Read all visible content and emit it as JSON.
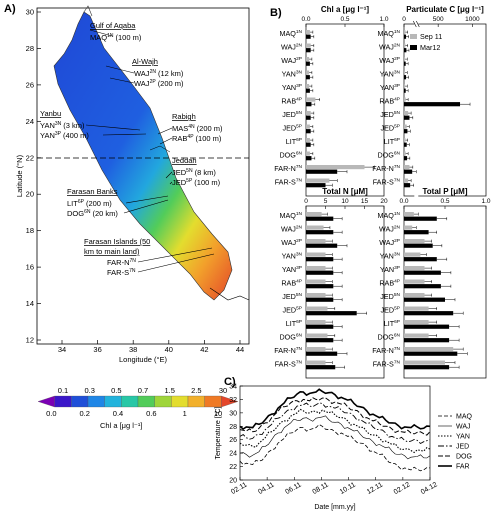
{
  "panels": {
    "a": "A)",
    "b": "B)",
    "c": "C)"
  },
  "map": {
    "y_label": "Latitude (°N)",
    "x_label": "Longitude (°E)",
    "y_ticks": [
      "30",
      "28",
      "26",
      "24",
      "22",
      "20",
      "18",
      "16",
      "14",
      "12"
    ],
    "x_ticks": [
      "34",
      "36",
      "38",
      "40",
      "42",
      "44"
    ],
    "region_labels": {
      "aqaba": "Gulf of Aqaba",
      "wajh": "Al-Wajh",
      "yanbu": "Yanbu",
      "rabigh": "Rabigh",
      "jeddah": "Jeddah",
      "farasan_banks": "Farasan Banks",
      "farasan_islands_1": "Farasan Islands (50",
      "farasan_islands_2": "km to main land)"
    },
    "stations": [
      {
        "code": "MAQ",
        "sup": "1N",
        "dist": "(100 m)"
      },
      {
        "code": "WAJ",
        "sup": "2N",
        "dist": "(12 km)"
      },
      {
        "code": "WAJ",
        "sup": "2P",
        "dist": "(200 m)"
      },
      {
        "code": "YAN",
        "sup": "3N",
        "dist": "(3 km)"
      },
      {
        "code": "YAN",
        "sup": "3P",
        "dist": "(400 m)"
      },
      {
        "code": "MAS",
        "sup": "4N",
        "dist": "(200 m)"
      },
      {
        "code": "RAB",
        "sup": "4P",
        "dist": "(100 m)"
      },
      {
        "code": "JED",
        "sup": "5N",
        "dist": "(8 km)"
      },
      {
        "code": "JED",
        "sup": "5P",
        "dist": "(100 m)"
      },
      {
        "code": "LIT",
        "sup": "6P",
        "dist": "(200 m)"
      },
      {
        "code": "DOG",
        "sup": "6N",
        "dist": "(20 km)"
      },
      {
        "code": "FAR-N",
        "sup": "7N",
        "dist": ""
      },
      {
        "code": "FAR-S",
        "sup": "7N",
        "dist": ""
      }
    ],
    "colorbar": {
      "label": "Chl a [μg l⁻¹]",
      "top_ticks": [
        "0.1",
        "0.3",
        "0.5",
        "0.7",
        "1.5",
        "2.5",
        "30"
      ],
      "bottom_ticks": [
        "0.0",
        "0.2",
        "0.4",
        "0.6",
        "1",
        "10"
      ],
      "colors": [
        "#7b00b4",
        "#3a17c9",
        "#1f4fd8",
        "#1f86e6",
        "#22b3dc",
        "#28c7a6",
        "#52cc5a",
        "#9fd53a",
        "#e3dd2e",
        "#f2b02b",
        "#ef7a25",
        "#e4462a"
      ]
    }
  },
  "chart_data": [
    {
      "type": "bar",
      "title": "Chl a [μg l⁻¹]",
      "xlim": [
        0,
        1.0
      ],
      "x_ticks": [
        "0.0",
        "0.5",
        "1.0"
      ],
      "categories": [
        "MAQ1N",
        "WAJ2N",
        "WAJ2P",
        "YAN3N",
        "YAN3P",
        "RAB4P",
        "JED5N",
        "JED5P",
        "LIT6P",
        "DOG6N",
        "FAR-N7N",
        "FAR-S7N"
      ],
      "series": [
        {
          "name": "Sep 11",
          "values": [
            0.05,
            0.06,
            0.04,
            0.04,
            0.04,
            0.12,
            0.06,
            0.05,
            0.05,
            0.05,
            0.75,
            0.3
          ],
          "color": "#b8b8b8"
        },
        {
          "name": "Mar12",
          "values": [
            0.06,
            0.06,
            0.05,
            0.05,
            0.05,
            0.07,
            0.06,
            0.06,
            0.06,
            0.07,
            0.4,
            0.25
          ],
          "color": "#000000"
        }
      ]
    },
    {
      "type": "bar",
      "title": "Particulate C [μg l⁻¹]",
      "xlim": [
        0,
        1200
      ],
      "x_ticks": [
        "0",
        "500",
        "1000"
      ],
      "axis_break": true,
      "categories": [
        "MAQ1N",
        "WAJ2N",
        "WAJ2P",
        "YAN3N",
        "YAN3P",
        "RAB4P",
        "JED5N",
        "JED5P",
        "LIT6P",
        "DOG6N",
        "FAR-N7N",
        "FAR-S7N"
      ],
      "series": [
        {
          "name": "Sep 11",
          "values": [
            20,
            20,
            15,
            15,
            15,
            25,
            60,
            40,
            20,
            25,
            80,
            60
          ],
          "color": "#b8b8b8"
        },
        {
          "name": "Mar12",
          "values": [
            30,
            35,
            25,
            30,
            25,
            820,
            80,
            50,
            40,
            45,
            120,
            90
          ],
          "color": "#000000"
        }
      ]
    },
    {
      "type": "bar",
      "title": "Total N [μM]",
      "xlim": [
        0,
        20
      ],
      "x_ticks": [
        "0",
        "5",
        "10",
        "15",
        "20"
      ],
      "categories": [
        "MAQ1N",
        "WAJ2N",
        "WAJ2P",
        "YAN3N",
        "YAN3P",
        "RAB4P",
        "JED5N",
        "JED5P",
        "LIT6P",
        "DOG6N",
        "FAR-N7N",
        "FAR-S7N"
      ],
      "series": [
        {
          "name": "Sep 11",
          "values": [
            4,
            4.5,
            5,
            5,
            5,
            5,
            5,
            5.5,
            5,
            5.5,
            5,
            5
          ],
          "color": "#b8b8b8"
        },
        {
          "name": "Mar12",
          "values": [
            7,
            7,
            8,
            7,
            7,
            7,
            7,
            13,
            7,
            7,
            8,
            7.5
          ],
          "color": "#000000"
        }
      ]
    },
    {
      "type": "bar",
      "title": "Total P [μM]",
      "xlim": [
        0,
        1.0
      ],
      "x_ticks": [
        "0.0",
        "0.5",
        "1.0"
      ],
      "categories": [
        "MAQ1N",
        "WAJ2N",
        "WAJ2P",
        "YAN3N",
        "YAN3P",
        "RAB4P",
        "JED5N",
        "JED5P",
        "LIT6P",
        "DOG6N",
        "FAR-N7N",
        "FAR-S7N"
      ],
      "series": [
        {
          "name": "Sep 11",
          "values": [
            0.12,
            0.1,
            0.25,
            0.2,
            0.25,
            0.25,
            0.25,
            0.3,
            0.3,
            0.3,
            0.6,
            0.5
          ],
          "color": "#b8b8b8"
        },
        {
          "name": "Mar12",
          "values": [
            0.4,
            0.3,
            0.35,
            0.4,
            0.45,
            0.45,
            0.5,
            0.6,
            0.55,
            0.55,
            0.65,
            0.55
          ],
          "color": "#000000"
        }
      ]
    },
    {
      "type": "line",
      "ylabel": "Temperature [°C]",
      "xlabel": "Date [mm.yy]",
      "ylim": [
        20,
        34
      ],
      "y_ticks": [
        "20",
        "22",
        "24",
        "26",
        "28",
        "30",
        "32",
        "34"
      ],
      "x_ticks": [
        "02.11",
        "04.11",
        "06.11",
        "08.11",
        "10.11",
        "12.11",
        "02.12",
        "04.12"
      ],
      "x": [
        0,
        1,
        2,
        3,
        4,
        5,
        6,
        7,
        8,
        9,
        10,
        11,
        12,
        13,
        14,
        15,
        16,
        17,
        18,
        19,
        20,
        21,
        22,
        23,
        24,
        25,
        26,
        27,
        28,
        29,
        30
      ],
      "series": [
        {
          "name": "MAQ",
          "dash": "4,2",
          "width": 0.8,
          "values": [
            22.8,
            22.5,
            22.3,
            22.8,
            23.5,
            24.5,
            25.5,
            26.2,
            27.0,
            27.5,
            27.8,
            27.5,
            27.8,
            28.0,
            27.5,
            27.2,
            27.0,
            26.5,
            26.0,
            25.5,
            25.0,
            24.3,
            23.8,
            23.2,
            22.5,
            22.0,
            21.8,
            21.5,
            21.6,
            21.5,
            21.8
          ]
        },
        {
          "name": "WAJ",
          "dash": "",
          "width": 0.6,
          "values": [
            24.0,
            23.8,
            23.7,
            24.2,
            25.0,
            26.0,
            27.0,
            27.8,
            28.5,
            28.9,
            29.2,
            29.0,
            29.2,
            29.4,
            29.0,
            28.6,
            28.3,
            27.8,
            27.3,
            26.8,
            26.2,
            25.7,
            25.3,
            24.8,
            24.3,
            23.8,
            23.6,
            23.4,
            23.5,
            23.3,
            23.6
          ]
        },
        {
          "name": "YAN",
          "dash": "1.5,1.5",
          "width": 1.1,
          "values": [
            25.5,
            25.2,
            25.0,
            25.5,
            26.3,
            27.2,
            28.1,
            28.8,
            29.5,
            30.0,
            30.3,
            30.0,
            30.2,
            30.4,
            30.0,
            29.7,
            29.3,
            28.8,
            28.3,
            27.8,
            27.2,
            26.7,
            26.3,
            25.8,
            25.3,
            24.8,
            24.6,
            24.4,
            24.5,
            24.3,
            24.6
          ]
        },
        {
          "name": "JED",
          "dash": "6,2,1.5,2",
          "width": 0.9,
          "values": [
            26.5,
            26.3,
            26.2,
            26.8,
            27.5,
            28.3,
            29.2,
            29.9,
            30.5,
            31.0,
            31.2,
            31.0,
            31.2,
            31.4,
            31.0,
            30.7,
            30.4,
            30.0,
            29.5,
            29.0,
            28.4,
            27.9,
            27.5,
            27.0,
            26.5,
            26.1,
            25.9,
            25.8,
            25.9,
            25.7,
            26.0
          ]
        },
        {
          "name": "DOG",
          "dash": "5,2",
          "width": 1.0,
          "values": [
            27.5,
            27.3,
            27.2,
            27.7,
            28.5,
            29.3,
            30.2,
            30.9,
            31.5,
            31.8,
            32.0,
            31.8,
            32.0,
            32.2,
            31.9,
            31.6,
            31.3,
            30.9,
            30.4,
            29.9,
            29.3,
            28.8,
            28.4,
            28.0,
            27.6,
            27.3,
            27.1,
            27.0,
            27.1,
            26.9,
            27.2
          ]
        },
        {
          "name": "FAR",
          "dash": "",
          "width": 1.6,
          "values": [
            28.0,
            27.9,
            27.8,
            28.3,
            29.0,
            29.8,
            30.7,
            31.5,
            32.2,
            32.8,
            33.1,
            32.9,
            33.1,
            33.2,
            33.0,
            32.7,
            32.3,
            31.9,
            31.4,
            30.9,
            30.3,
            29.8,
            29.3,
            28.9,
            28.5,
            28.1,
            27.9,
            27.8,
            27.9,
            27.7,
            28.0
          ]
        }
      ]
    }
  ],
  "bar_legend": [
    "Sep 11",
    "Mar12"
  ]
}
